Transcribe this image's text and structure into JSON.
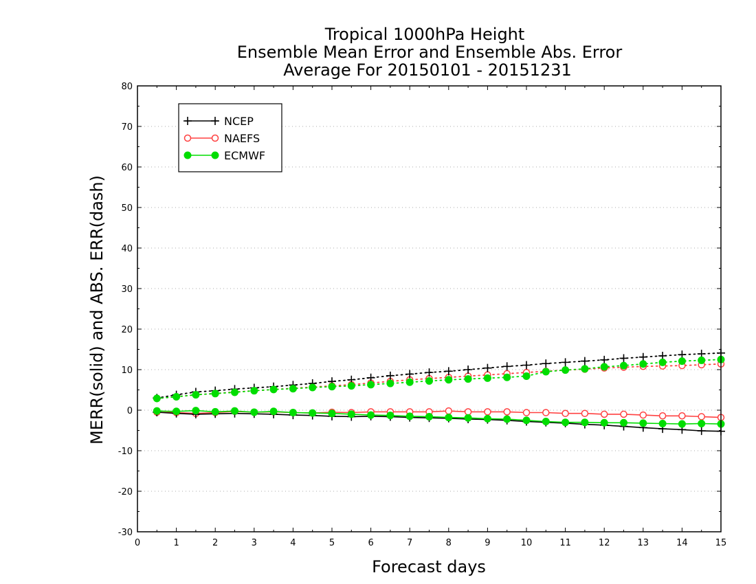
{
  "chart_data": {
    "type": "line",
    "title": [
      "Tropical 1000hPa Height",
      "Ensemble Mean Error and Ensemble Abs. Error",
      "Average For 20150101 - 20151231"
    ],
    "xlabel": "Forecast days",
    "ylabel": "MERR(solid) and ABS. ERR(dash)",
    "xlim": [
      0,
      15
    ],
    "ylim": [
      -30,
      80
    ],
    "xticks": [
      0,
      1,
      2,
      3,
      4,
      5,
      6,
      7,
      8,
      9,
      10,
      11,
      12,
      13,
      14,
      15
    ],
    "yticks": [
      -30,
      -20,
      -10,
      0,
      10,
      20,
      30,
      40,
      50,
      60,
      70,
      80
    ],
    "grid": "horizontal dotted",
    "legend_position": "top-left",
    "x": [
      0.5,
      1,
      1.5,
      2,
      2.5,
      3,
      3.5,
      4,
      4.5,
      5,
      5.5,
      6,
      6.5,
      7,
      7.5,
      8,
      8.5,
      9,
      9.5,
      10,
      10.5,
      11,
      11.5,
      12,
      12.5,
      13,
      13.5,
      14,
      14.5,
      15
    ],
    "series": [
      {
        "name": "NCEP",
        "color": "#000000",
        "marker": "plus",
        "merr": [
          -0.5,
          -0.8,
          -1.0,
          -0.9,
          -0.8,
          -0.9,
          -1.0,
          -1.2,
          -1.3,
          -1.5,
          -1.6,
          -1.5,
          -1.6,
          -1.8,
          -1.9,
          -2.0,
          -2.2,
          -2.3,
          -2.5,
          -2.8,
          -3.0,
          -3.2,
          -3.5,
          -3.7,
          -4.0,
          -4.3,
          -4.6,
          -4.8,
          -5.1,
          -5.2
        ],
        "abs_err": [
          3.0,
          3.8,
          4.5,
          4.8,
          5.2,
          5.5,
          5.8,
          6.2,
          6.6,
          7.1,
          7.5,
          8.0,
          8.5,
          8.9,
          9.3,
          9.6,
          10.0,
          10.4,
          10.8,
          11.1,
          11.5,
          11.8,
          12.1,
          12.4,
          12.8,
          13.1,
          13.4,
          13.7,
          13.9,
          14.1
        ]
      },
      {
        "name": "NAEFS",
        "color": "#ff4040",
        "marker": "open-circle",
        "merr": [
          -0.5,
          -0.6,
          -0.8,
          -0.6,
          -0.3,
          -0.5,
          -0.4,
          -0.6,
          -0.7,
          -0.5,
          -0.6,
          -0.4,
          -0.4,
          -0.4,
          -0.4,
          -0.2,
          -0.4,
          -0.4,
          -0.4,
          -0.6,
          -0.6,
          -0.8,
          -0.8,
          -1.0,
          -1.0,
          -1.2,
          -1.4,
          -1.4,
          -1.6,
          -1.8
        ],
        "abs_err": [
          2.9,
          3.3,
          3.8,
          4.1,
          4.5,
          4.8,
          5.1,
          5.4,
          5.7,
          6.0,
          6.3,
          6.7,
          7.1,
          7.5,
          7.8,
          8.1,
          8.4,
          8.7,
          9.0,
          9.3,
          9.6,
          9.9,
          10.1,
          10.4,
          10.6,
          10.8,
          10.9,
          11.0,
          11.2,
          11.4
        ]
      },
      {
        "name": "ECMWF",
        "color": "#00dd00",
        "marker": "filled-circle",
        "merr": [
          -0.2,
          -0.3,
          -0.1,
          -0.4,
          -0.2,
          -0.5,
          -0.3,
          -0.6,
          -0.7,
          -0.8,
          -1.0,
          -1.2,
          -1.3,
          -1.5,
          -1.6,
          -1.8,
          -1.9,
          -2.1,
          -2.2,
          -2.5,
          -2.8,
          -3.0,
          -3.0,
          -3.1,
          -3.1,
          -3.2,
          -3.3,
          -3.4,
          -3.3,
          -3.4
        ],
        "abs_err": [
          2.9,
          3.3,
          3.8,
          4.1,
          4.4,
          4.8,
          5.1,
          5.3,
          5.6,
          5.8,
          6.0,
          6.3,
          6.6,
          6.9,
          7.2,
          7.5,
          7.7,
          7.9,
          8.1,
          8.4,
          9.5,
          9.9,
          10.2,
          10.7,
          11.0,
          11.4,
          11.8,
          12.1,
          12.3,
          12.5
        ]
      }
    ]
  }
}
